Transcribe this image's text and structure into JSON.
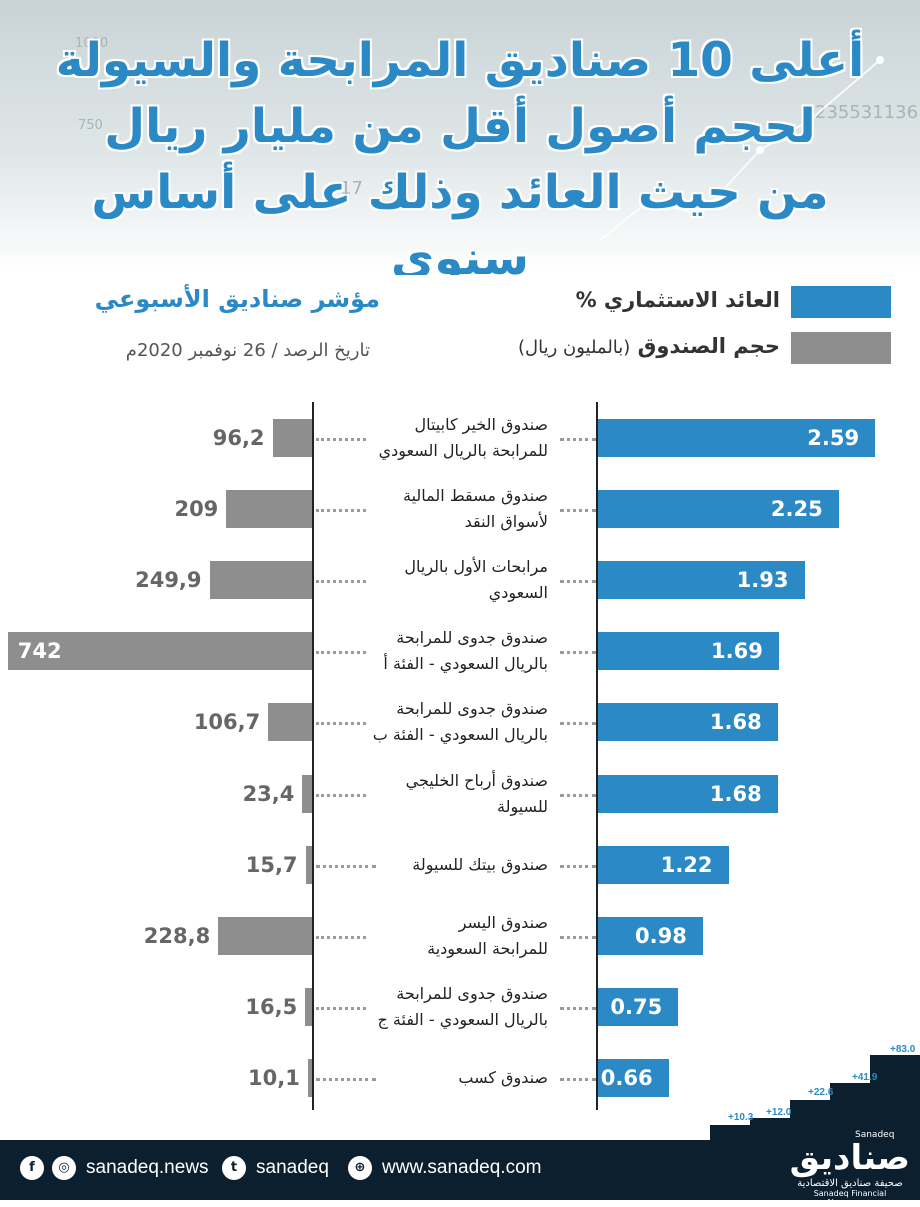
{
  "header": {
    "title_lines": [
      "أعلى 10 صناديق المرابحة والسيولة",
      "لحجم أصول أقل من مليار ريال",
      "من حيث العائد وذلك على أساس سنوي"
    ],
    "bg_numbers": [
      "1000",
      "750",
      "235531136",
      "17"
    ]
  },
  "legend": {
    "return_label": "العائد الاستثماري %",
    "size_label_main": "حجم الصندوق",
    "size_label_unit": "(بالمليون ريال)",
    "return_color": "#2b8ac6",
    "size_color": "#8e8e8e"
  },
  "index": {
    "title": "مؤشر صناديق الأسبوعي",
    "date": "تاريخ الرصد / 26 نوفمبر 2020م"
  },
  "chart_data": {
    "type": "bar",
    "series": [
      {
        "name": "العائد الاستثماري %",
        "values": [
          2.59,
          2.25,
          1.93,
          1.69,
          1.68,
          1.68,
          1.22,
          0.98,
          0.75,
          0.66
        ]
      },
      {
        "name": "حجم الصندوق (بالمليون ريال)",
        "values": [
          96.2,
          209,
          249.9,
          742,
          106.7,
          23.4,
          15.7,
          228.8,
          16.5,
          10.1
        ]
      }
    ],
    "funds": [
      {
        "line1": "صندوق الخير كابيتال",
        "line2": "للمرابحة بالريال السعودي",
        "return_label": "2.59",
        "size_label": "96,2"
      },
      {
        "line1": "صندوق مسقط المالية",
        "line2": "لأسواق النقد",
        "return_label": "2.25",
        "size_label": "209"
      },
      {
        "line1": "مرابحات الأول بالريال",
        "line2": "السعودي",
        "return_label": "1.93",
        "size_label": "249,9"
      },
      {
        "line1": "صندوق جدوى للمرابحة",
        "line2": "بالريال السعودي - الفئة أ",
        "return_label": "1.69",
        "size_label": "742"
      },
      {
        "line1": "صندوق جدوى للمرابحة",
        "line2": "بالريال السعودي - الفئة ب",
        "return_label": "1.68",
        "size_label": "106,7"
      },
      {
        "line1": "صندوق أرباح الخليجي",
        "line2": "للسيولة",
        "return_label": "1.68",
        "size_label": "23,4"
      },
      {
        "line1": "صندوق بيتك للسيولة",
        "line2": "",
        "return_label": "1.22",
        "size_label": "15,7"
      },
      {
        "line1": "صندوق اليسر",
        "line2": "للمرابحة السعودية",
        "return_label": "0.98",
        "size_label": "228,8"
      },
      {
        "line1": "صندوق جدوى للمرابحة",
        "line2": "بالريال السعودي - الفئة ج",
        "return_label": "0.75",
        "size_label": "16,5"
      },
      {
        "line1": "صندوق كسب",
        "line2": "",
        "return_label": "0.66",
        "size_label": "10,1"
      }
    ]
  },
  "footer": {
    "social_handle_1": "sanadeq.news",
    "social_handle_2": "sanadeq",
    "website": "www.sanadeq.com",
    "logo_ar": "صناديق",
    "logo_en": "Sanadeq",
    "logo_sub_ar": "صحيفة صناديق الاقتصادية",
    "logo_sub_en": "Sanadeq Financial Newspaper",
    "steps": [
      "+10.3",
      "+12.0",
      "+22.6",
      "+41.9",
      "+83.0"
    ]
  }
}
